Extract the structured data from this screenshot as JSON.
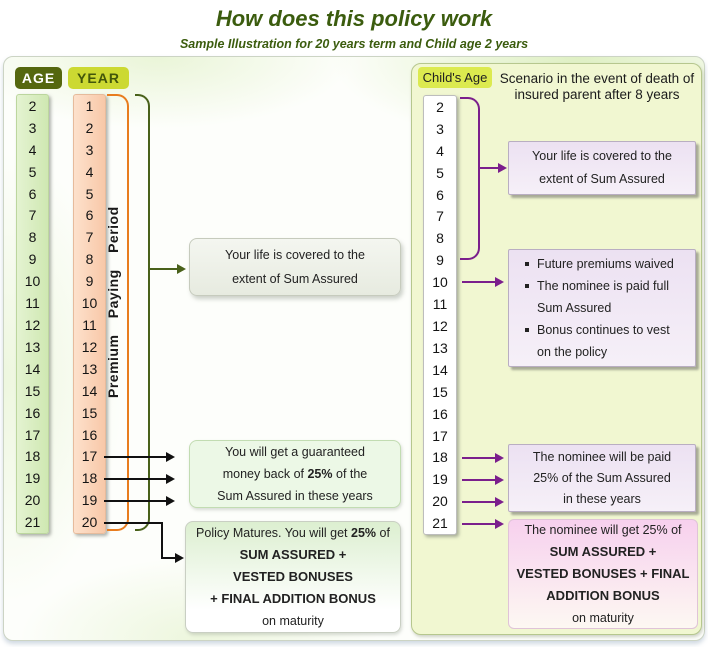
{
  "title": "How does this policy work",
  "subtitle": "Sample Illustration for 20 years term and Child age 2 years",
  "left": {
    "age_label": "AGE",
    "year_label": "YEAR",
    "premium_period_label": "Premium Paying Period",
    "ages": [
      "2",
      "3",
      "4",
      "5",
      "6",
      "7",
      "8",
      "9",
      "10",
      "11",
      "12",
      "13",
      "14",
      "15",
      "16",
      "17",
      "18",
      "19",
      "20",
      "21"
    ],
    "years": [
      "1",
      "2",
      "3",
      "4",
      "5",
      "6",
      "7",
      "8",
      "9",
      "10",
      "11",
      "12",
      "13",
      "14",
      "15",
      "16",
      "17",
      "18",
      "19",
      "20"
    ]
  },
  "middle": {
    "life_cover_box": {
      "lines": [
        "Your life is covered to the",
        "extent of Sum Assured"
      ]
    },
    "money_back_box": {
      "line1": "You will get a guaranteed",
      "line2_pre": "money back of ",
      "line2_bold": "25%",
      "line2_post": " of the",
      "line3": "Sum Assured in these years"
    },
    "maturity_box": {
      "line1_pre": "Policy Matures. You will get ",
      "line1_bold": "25%",
      "line1_post": " of",
      "bold_lines": [
        "SUM ASSURED +",
        "VESTED BONUSES",
        "+ FINAL ADDITION BONUS"
      ],
      "footer": "on maturity"
    }
  },
  "right": {
    "childs_age_label": "Child's Age",
    "scenario_heading_lines": [
      "Scenario in the event of death of",
      "insured parent after 8 years"
    ],
    "ages": [
      "2",
      "3",
      "4",
      "5",
      "6",
      "7",
      "8",
      "9",
      "10",
      "11",
      "12",
      "13",
      "14",
      "15",
      "16",
      "17",
      "18",
      "19",
      "20",
      "21"
    ],
    "life_cover_box": {
      "lines": [
        "Your life is covered to the",
        "extent of Sum Assured"
      ]
    },
    "death_benefit_box": {
      "bullets": [
        "Future premiums waived",
        "The nominee is paid full Sum Assured",
        "Bonus continues to vest on the policy"
      ]
    },
    "nominee_money_back_box": {
      "lines": [
        "The nominee will be paid",
        "25% of the Sum Assured",
        "in these years"
      ]
    },
    "nominee_maturity_box": {
      "line1": "The nominee will get 25% of",
      "bold_lines": [
        "SUM ASSURED +",
        "VESTED BONUSES + FINAL",
        "ADDITION BONUS"
      ],
      "footer": "on maturity"
    }
  },
  "colors": {
    "heading_green": "#3b5c0e",
    "bracket_orange": "#e87c1e",
    "bracket_green": "#49611a",
    "arrow_purple": "#7b1f8c",
    "arrow_black": "#111111",
    "age_badge_bg": "#55670f",
    "year_badge_bg": "#ccd932",
    "childs_age_badge_bg": "#dcea4f",
    "age_column_bg": "#d9eec0",
    "year_column_bg": "#fad2b8",
    "right_panel_bg": "#f1f7d1",
    "lavender_box_bg": "#ece1f2",
    "pink_box_bg": "#f7d0ee"
  }
}
